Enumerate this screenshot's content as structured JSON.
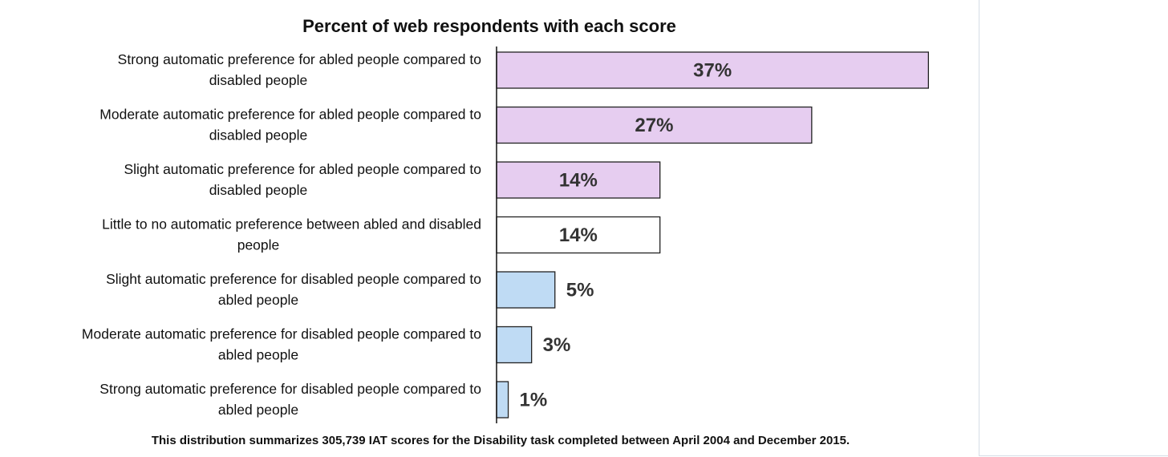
{
  "chart_data": {
    "type": "bar",
    "orientation": "horizontal",
    "title": "Percent of web respondents with each score",
    "xlim": [
      0,
      40
    ],
    "grid": false,
    "categories": [
      [
        "Strong automatic preference for abled people compared to",
        "disabled people"
      ],
      [
        "Moderate automatic preference for abled people compared to",
        "disabled people"
      ],
      [
        "Slight automatic preference for abled people compared to",
        "disabled people"
      ],
      [
        "Little to no automatic preference between abled and disabled",
        "people"
      ],
      [
        "Slight automatic preference for disabled people compared to",
        "abled people"
      ],
      [
        "Moderate automatic preference for disabled people compared to",
        "abled people"
      ],
      [
        "Strong automatic preference for disabled people compared to",
        "abled people"
      ]
    ],
    "values": [
      37,
      27,
      14,
      14,
      5,
      3,
      1
    ],
    "value_labels": [
      "37%",
      "27%",
      "14%",
      "14%",
      "5%",
      "3%",
      "1%"
    ],
    "colors": [
      "#e6cdf0",
      "#e6cdf0",
      "#e6cdf0",
      "#ffffff",
      "#bfdbf4",
      "#bfdbf4",
      "#bfdbf4"
    ],
    "footnote": "This distribution summarizes 305,739 IAT scores for the Disability  task completed between April 2004 and December 2015."
  }
}
